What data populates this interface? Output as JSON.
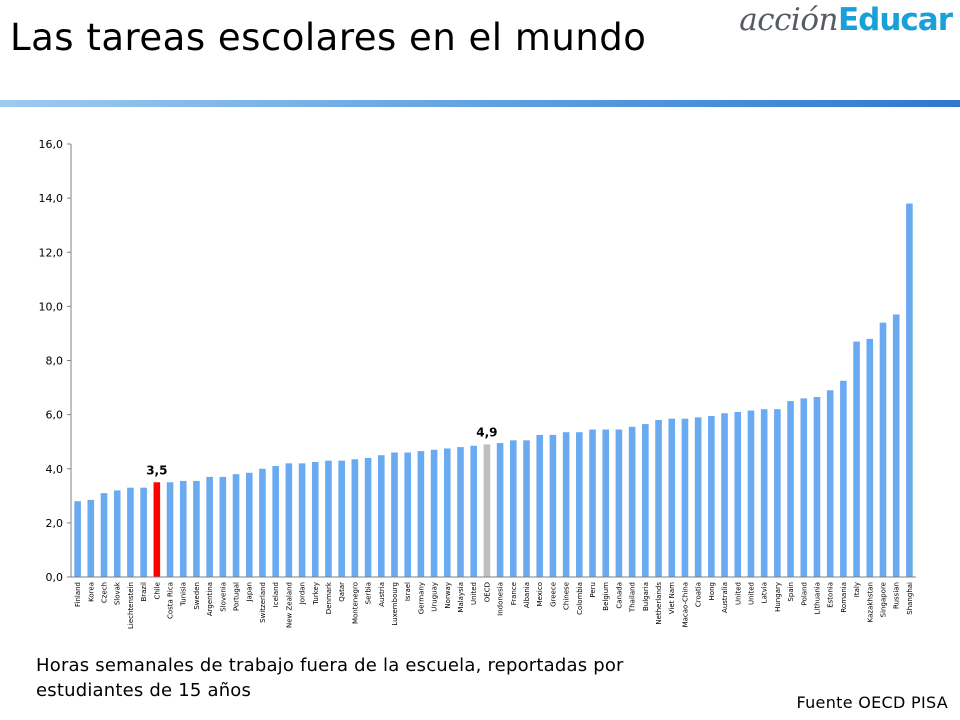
{
  "title": "Las tareas escolares en el mundo",
  "logo": {
    "part1": "acción",
    "part2": "Educar"
  },
  "caption": "Horas semanales de trabajo fuera de la escuela, reportadas por estudiantes de 15 años",
  "source": "Fuente OECD PISA",
  "colors": {
    "bar": "#6aaaf0",
    "highlight": "#ff0000",
    "average": "#bfbfbf",
    "axis": "#808080"
  },
  "chart_data": {
    "type": "bar",
    "categories": [
      "Finland",
      "Korea",
      "Czech",
      "Slovak",
      "Liechtenstein",
      "Brazil",
      "Chile",
      "Costa Rica",
      "Tunisia",
      "Sweden",
      "Argentina",
      "Slovenia",
      "Portugal",
      "Japan",
      "Switzerland",
      "Iceland",
      "New Zealand",
      "Jordan",
      "Turkey",
      "Denmark",
      "Qatar",
      "Montenegro",
      "Serbia",
      "Austria",
      "Luxembourg",
      "Israel",
      "Germany",
      "Uruguay",
      "Norway",
      "Malaysia",
      "United",
      "OECD",
      "Indonesia",
      "France",
      "Albania",
      "Mexico",
      "Greece",
      "Chinese",
      "Colombia",
      "Peru",
      "Belgium",
      "Canada",
      "Thailand",
      "Bulgaria",
      "Netherlands",
      "Viet Nam",
      "Macao-China",
      "Croatia",
      "Hong",
      "Australia",
      "United",
      "United",
      "Latvia",
      "Hungary",
      "Spain",
      "Poland",
      "Lithuania",
      "Estonia",
      "Romania",
      "Italy",
      "Kazakhstan",
      "Singapore",
      "Russian",
      "Shanghai"
    ],
    "values": [
      2.8,
      2.85,
      3.1,
      3.2,
      3.3,
      3.3,
      3.5,
      3.5,
      3.55,
      3.55,
      3.7,
      3.7,
      3.8,
      3.85,
      4.0,
      4.1,
      4.2,
      4.2,
      4.25,
      4.3,
      4.3,
      4.35,
      4.4,
      4.5,
      4.6,
      4.6,
      4.65,
      4.7,
      4.75,
      4.8,
      4.85,
      4.9,
      4.95,
      5.05,
      5.05,
      5.25,
      5.25,
      5.35,
      5.35,
      5.45,
      5.45,
      5.45,
      5.55,
      5.65,
      5.8,
      5.85,
      5.85,
      5.9,
      5.95,
      6.05,
      6.1,
      6.15,
      6.2,
      6.2,
      6.5,
      6.6,
      6.65,
      6.9,
      7.25,
      8.7,
      8.8,
      9.4,
      9.7,
      13.8
    ],
    "highlight_index": 6,
    "average_index": 31,
    "data_labels": [
      {
        "index": 6,
        "text": "3,5"
      },
      {
        "index": 31,
        "text": "4,9"
      }
    ],
    "y_ticks": [
      "0,0",
      "2,0",
      "4,0",
      "6,0",
      "8,0",
      "10,0",
      "12,0",
      "14,0",
      "16,0"
    ],
    "ylim": [
      0,
      16
    ],
    "grid": false,
    "legend": "none"
  }
}
